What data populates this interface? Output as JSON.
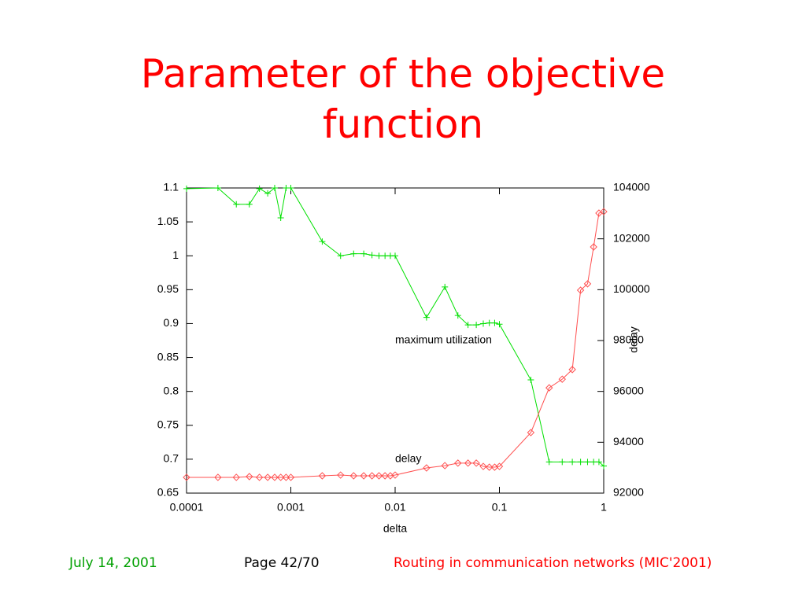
{
  "chart_data": {
    "type": "line",
    "title": "Parameter of the objective function",
    "x": [
      0.0001,
      0.0002,
      0.0003,
      0.0004,
      0.0005,
      0.0006,
      0.0007,
      0.0008,
      0.0009,
      0.001,
      0.002,
      0.003,
      0.004,
      0.005,
      0.006,
      0.007,
      0.008,
      0.009,
      0.01,
      0.02,
      0.03,
      0.04,
      0.05,
      0.06,
      0.07,
      0.08,
      0.09,
      0.1,
      0.2,
      0.3,
      0.4,
      0.5,
      0.6,
      0.7,
      0.8,
      0.9,
      1
    ],
    "series": [
      {
        "name": "maximum utilization",
        "color": "#00e000",
        "marker": "plus",
        "values": [
          1.099,
          1.1,
          1.076,
          1.076,
          1.099,
          1.092,
          1.1,
          1.056,
          1.1,
          1.1,
          1.021,
          1.0,
          1.003,
          1.003,
          1.001,
          1.0,
          1.0,
          1.0,
          1.0,
          0.909,
          0.954,
          0.912,
          0.898,
          0.898,
          0.9,
          0.901,
          0.901,
          0.899,
          0.817,
          0.696,
          0.696,
          0.696,
          0.696,
          0.696,
          0.696,
          0.696,
          0.69
        ]
      },
      {
        "name": "delay",
        "color": "#ff5050",
        "marker": "diamond",
        "axis": "y2",
        "values": [
          92620,
          92620,
          92620,
          92650,
          92620,
          92620,
          92620,
          92620,
          92620,
          92620,
          92680,
          92710,
          92680,
          92680,
          92680,
          92680,
          92680,
          92680,
          92710,
          92990,
          93080,
          93180,
          93180,
          93180,
          93050,
          93020,
          93020,
          93050,
          94380,
          96140,
          96480,
          96860,
          99980,
          100230,
          101680,
          103010,
          103070
        ]
      }
    ],
    "x_label": "delta",
    "y2_label": "delay",
    "xscale": "log",
    "xlim": [
      0.0001,
      1
    ],
    "xticks": [
      0.0001,
      0.001,
      0.01,
      0.1,
      1
    ],
    "ylim": [
      0.65,
      1.1
    ],
    "yticks": [
      0.65,
      0.7,
      0.75,
      0.8,
      0.85,
      0.9,
      0.95,
      1,
      1.05,
      1.1
    ],
    "y2lim": [
      92000,
      104000
    ],
    "y2ticks": [
      92000,
      94000,
      96000,
      98000,
      100000,
      102000,
      104000
    ]
  },
  "footer": {
    "date": "July 14, 2001",
    "page": "Page 42/70",
    "talk": "Routing in communication networks (MIC'2001)"
  }
}
